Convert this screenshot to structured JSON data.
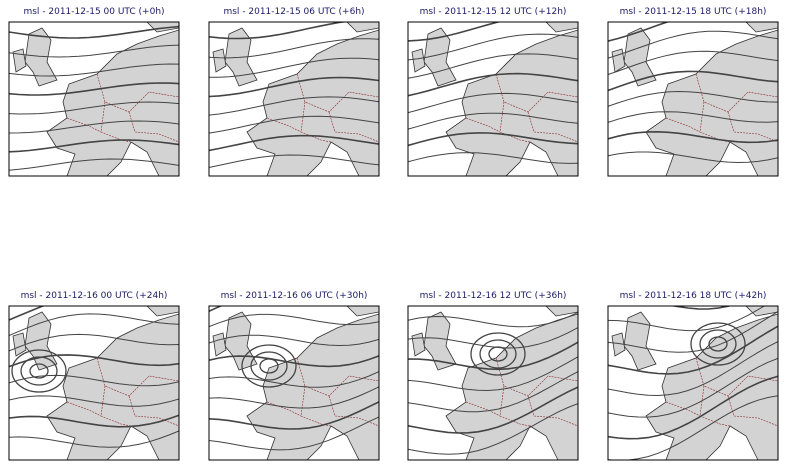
{
  "panels": [
    {
      "title": "msl - 2011-12-15 00 UTC (+0h)"
    },
    {
      "title": "msl - 2011-12-15 06 UTC (+6h)"
    },
    {
      "title": "msl - 2011-12-15 12 UTC (+12h)"
    },
    {
      "title": "msl - 2011-12-15 18 UTC (+18h)"
    },
    {
      "title": "msl - 2011-12-16 00 UTC (+24h)"
    },
    {
      "title": "msl - 2011-12-16 06 UTC (+30h)"
    },
    {
      "title": "msl - 2011-12-16 12 UTC (+36h)"
    },
    {
      "title": "msl - 2011-12-16 18 UTC (+42h)"
    }
  ]
}
